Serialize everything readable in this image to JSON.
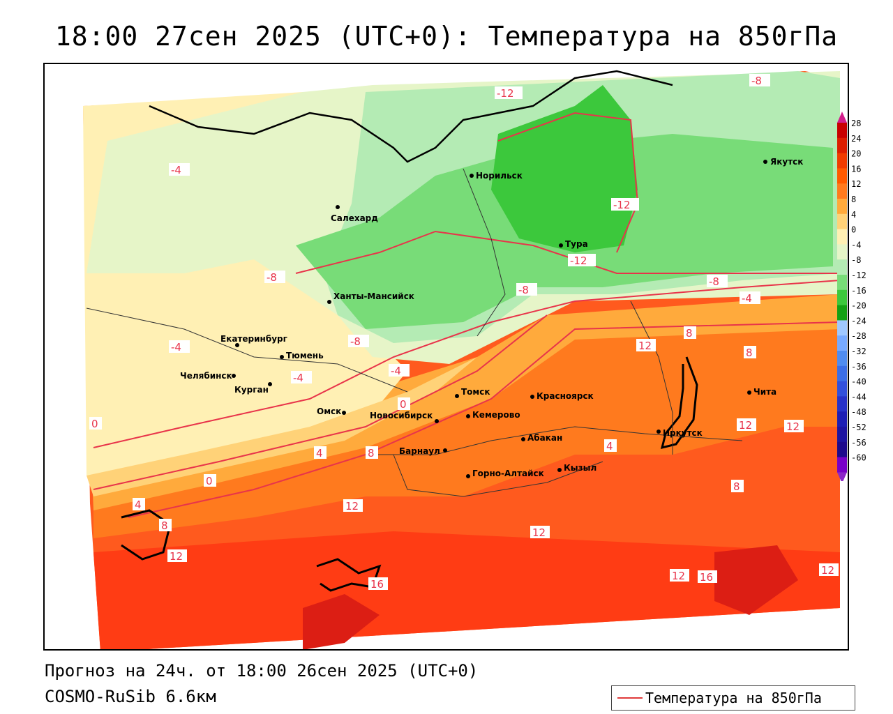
{
  "title": "18:00 27сен 2025 (UTC+0): Температура на 850гПа",
  "footer": {
    "forecast": "Прогноз на 24ч. от 18:00 26сен 2025 (UTC+0)",
    "model": "COSMO-RuSib 6.6км"
  },
  "legend": {
    "label": "Температура на 850гПа",
    "line_color": "#e03a3a"
  },
  "colorbar": {
    "ticks": [
      "28",
      "24",
      "20",
      "16",
      "12",
      "8",
      "4",
      "0",
      "-4",
      "-8",
      "-12",
      "-16",
      "-20",
      "-24",
      "-28",
      "-32",
      "-36",
      "-40",
      "-44",
      "-48",
      "-52",
      "-56",
      "-60"
    ],
    "colors": [
      "#c80000",
      "#dc1e00",
      "#f03c00",
      "#ff5a00",
      "#ff7a1e",
      "#ffaa3c",
      "#ffd278",
      "#fff0b4",
      "#e6f5c8",
      "#b4ebb4",
      "#78dc78",
      "#3cc83c",
      "#14a014",
      "#a0c8ff",
      "#78aaff",
      "#508cf0",
      "#3c6ee6",
      "#3250dc",
      "#2832c8",
      "#1e1eb4",
      "#1e14a0",
      "#1e0a8c",
      "#7800c8"
    ]
  },
  "cities": [
    {
      "name": "Норильск"
    },
    {
      "name": "Якутск"
    },
    {
      "name": "Салехард"
    },
    {
      "name": "Тура"
    },
    {
      "name": "Ханты-Мансийск"
    },
    {
      "name": "Екатеринбург"
    },
    {
      "name": "Тюмень"
    },
    {
      "name": "Челябинск"
    },
    {
      "name": "Курган"
    },
    {
      "name": "Омск"
    },
    {
      "name": "Томск"
    },
    {
      "name": "Красноярск"
    },
    {
      "name": "Новосибирск"
    },
    {
      "name": "Кемерово"
    },
    {
      "name": "Иркутск"
    },
    {
      "name": "Чита"
    },
    {
      "name": "Барнаул"
    },
    {
      "name": "Абакан"
    },
    {
      "name": "Горно-Алтайск"
    },
    {
      "name": "Кызыл"
    }
  ],
  "contour_labels": [
    "-12",
    "-8",
    "-4",
    "0",
    "4",
    "8",
    "12",
    "16"
  ]
}
